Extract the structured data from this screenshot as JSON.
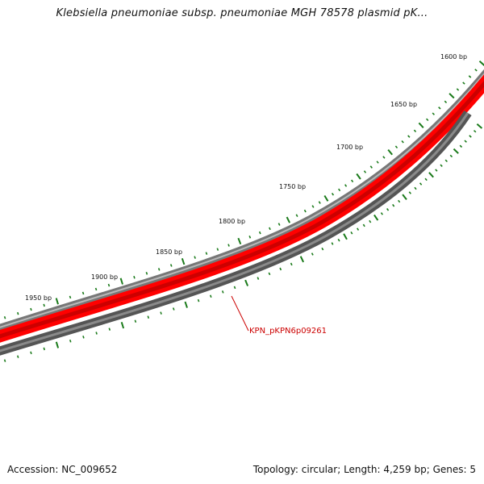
{
  "header": {
    "title": "Klebsiella pneumoniae subsp. pneumoniae MGH 78578 plasmid pK..."
  },
  "footer": {
    "accession": "Accession: NC_009652",
    "summary": "Topology: circular; Length: 4,259 bp; Genes: 5"
  },
  "ruler": {
    "ticks": [
      {
        "label": "1600 bp",
        "bp": 1600
      },
      {
        "label": "1650 bp",
        "bp": 1650
      },
      {
        "label": "1700 bp",
        "bp": 1700
      },
      {
        "label": "1750 bp",
        "bp": 1750
      },
      {
        "label": "1800 bp",
        "bp": 1800
      },
      {
        "label": "1850 bp",
        "bp": 1850
      },
      {
        "label": "1900 bp",
        "bp": 1900
      },
      {
        "label": "1950 bp",
        "bp": 1950
      }
    ]
  },
  "genes": [
    {
      "label": "KPN_pKPN6p09261"
    }
  ],
  "colors": {
    "forward_gene": "#ff0000",
    "backbone": "#808080",
    "reverse_track": "#555555",
    "tick": "#1a7a1a",
    "gene_label": "#cc0000"
  }
}
